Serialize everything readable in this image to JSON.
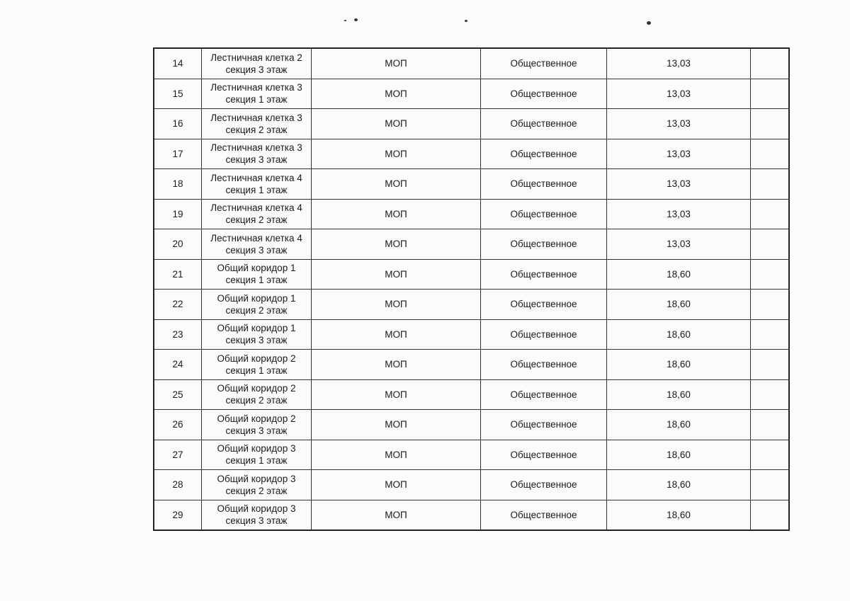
{
  "table": {
    "rows": [
      {
        "num": "14",
        "name_line1": "Лестничная клетка 2",
        "name_line2": "секция 3 этаж",
        "type": "МОП",
        "category": "Общественное",
        "area": "13,03",
        "extra": ""
      },
      {
        "num": "15",
        "name_line1": "Лестничная клетка 3",
        "name_line2": "секция 1 этаж",
        "type": "МОП",
        "category": "Общественное",
        "area": "13,03",
        "extra": ""
      },
      {
        "num": "16",
        "name_line1": "Лестничная клетка 3",
        "name_line2": "секция 2 этаж",
        "type": "МОП",
        "category": "Общественное",
        "area": "13,03",
        "extra": ""
      },
      {
        "num": "17",
        "name_line1": "Лестничная клетка 3",
        "name_line2": "секция 3 этаж",
        "type": "МОП",
        "category": "Общественное",
        "area": "13,03",
        "extra": ""
      },
      {
        "num": "18",
        "name_line1": "Лестничная клетка 4",
        "name_line2": "секция 1 этаж",
        "type": "МОП",
        "category": "Общественное",
        "area": "13,03",
        "extra": ""
      },
      {
        "num": "19",
        "name_line1": "Лестничная клетка 4",
        "name_line2": "секция 2 этаж",
        "type": "МОП",
        "category": "Общественное",
        "area": "13,03",
        "extra": ""
      },
      {
        "num": "20",
        "name_line1": "Лестничная клетка 4",
        "name_line2": "секция 3 этаж",
        "type": "МОП",
        "category": "Общественное",
        "area": "13,03",
        "extra": ""
      },
      {
        "num": "21",
        "name_line1": "Общий коридор 1",
        "name_line2": "секция 1 этаж",
        "type": "МОП",
        "category": "Общественное",
        "area": "18,60",
        "extra": ""
      },
      {
        "num": "22",
        "name_line1": "Общий коридор 1",
        "name_line2": "секция 2 этаж",
        "type": "МОП",
        "category": "Общественное",
        "area": "18,60",
        "extra": ""
      },
      {
        "num": "23",
        "name_line1": "Общий коридор 1",
        "name_line2": "секция 3 этаж",
        "type": "МОП",
        "category": "Общественное",
        "area": "18,60",
        "extra": ""
      },
      {
        "num": "24",
        "name_line1": "Общий коридор 2",
        "name_line2": "секция 1 этаж",
        "type": "МОП",
        "category": "Общественное",
        "area": "18,60",
        "extra": ""
      },
      {
        "num": "25",
        "name_line1": "Общий коридор 2",
        "name_line2": "секция 2 этаж",
        "type": "МОП",
        "category": "Общественное",
        "area": "18,60",
        "extra": ""
      },
      {
        "num": "26",
        "name_line1": "Общий коридор 2",
        "name_line2": "секция 3 этаж",
        "type": "МОП",
        "category": "Общественное",
        "area": "18,60",
        "extra": ""
      },
      {
        "num": "27",
        "name_line1": "Общий коридор 3",
        "name_line2": "секция 1 этаж",
        "type": "МОП",
        "category": "Общественное",
        "area": "18,60",
        "extra": ""
      },
      {
        "num": "28",
        "name_line1": "Общий коридор 3",
        "name_line2": "секция 2 этаж",
        "type": "МОП",
        "category": "Общественное",
        "area": "18,60",
        "extra": ""
      },
      {
        "num": "29",
        "name_line1": "Общий коридор 3",
        "name_line2": "секция 3 этаж",
        "type": "МОП",
        "category": "Общественное",
        "area": "18,60",
        "extra": ""
      }
    ]
  }
}
